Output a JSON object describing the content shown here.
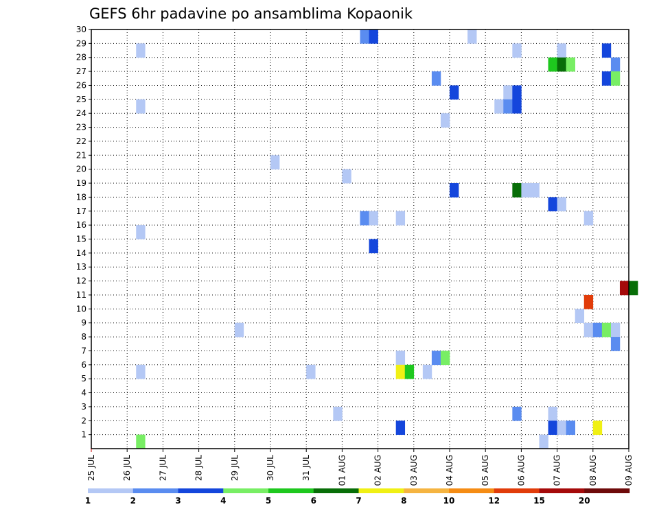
{
  "chart_data": {
    "type": "heatmap",
    "title": "GEFS 6hr padavine po ansamblima Kopaonik",
    "x_tick_labels": [
      "25 JUL",
      "26 JUL",
      "27 JUL",
      "28 JUL",
      "29 JUL",
      "30 JUL",
      "31 JUL",
      "01 AUG",
      "02 AUG",
      "03 AUG",
      "04 AUG",
      "05 AUG",
      "06 AUG",
      "07 AUG",
      "08 AUG",
      "09 AUG"
    ],
    "y_tick_labels": [
      1,
      2,
      3,
      4,
      5,
      6,
      7,
      8,
      9,
      10,
      11,
      12,
      13,
      14,
      15,
      16,
      17,
      18,
      19,
      20,
      21,
      22,
      23,
      24,
      25,
      26,
      27,
      28,
      29,
      30
    ],
    "xlim_days": [
      0,
      15
    ],
    "ylim": [
      0,
      30
    ],
    "grid": true,
    "legend_position": "bottom",
    "colorbar": {
      "labels": [
        "1",
        "2",
        "3",
        "4",
        "5",
        "6",
        "7",
        "8",
        "10",
        "12",
        "15",
        "20"
      ],
      "colors": [
        "#b4c8f5",
        "#5a8cf0",
        "#1446dc",
        "#78ee64",
        "#1ec81e",
        "#086e08",
        "#f0f014",
        "#f5b441",
        "#f58c14",
        "#e13c0a",
        "#a50a0a",
        "#6e0a0a"
      ]
    },
    "cells": [
      {
        "step": 5,
        "member": 28,
        "level": 1
      },
      {
        "step": 5,
        "member": 24,
        "level": 1
      },
      {
        "step": 5,
        "member": 15,
        "level": 1
      },
      {
        "step": 5,
        "member": 5,
        "level": 1
      },
      {
        "step": 5,
        "member": 0,
        "level": 4
      },
      {
        "step": 16,
        "member": 8,
        "level": 1
      },
      {
        "step": 20,
        "member": 20,
        "level": 1
      },
      {
        "step": 24,
        "member": 5,
        "level": 1
      },
      {
        "step": 27,
        "member": 2,
        "level": 1
      },
      {
        "step": 28,
        "member": 19,
        "level": 1
      },
      {
        "step": 30,
        "member": 29,
        "level": 2
      },
      {
        "step": 30,
        "member": 16,
        "level": 2
      },
      {
        "step": 31,
        "member": 29,
        "level": 3
      },
      {
        "step": 31,
        "member": 16,
        "level": 1
      },
      {
        "step": 31,
        "member": 14,
        "level": 3
      },
      {
        "step": 34,
        "member": 16,
        "level": 1
      },
      {
        "step": 34,
        "member": 6,
        "level": 1
      },
      {
        "step": 34,
        "member": 5,
        "level": 7
      },
      {
        "step": 34,
        "member": 1,
        "level": 3
      },
      {
        "step": 35,
        "member": 5,
        "level": 5
      },
      {
        "step": 37,
        "member": 5,
        "level": 1
      },
      {
        "step": 38,
        "member": 26,
        "level": 2
      },
      {
        "step": 38,
        "member": 6,
        "level": 2
      },
      {
        "step": 39,
        "member": 23,
        "level": 1
      },
      {
        "step": 39,
        "member": 6,
        "level": 4
      },
      {
        "step": 40,
        "member": 25,
        "level": 3
      },
      {
        "step": 40,
        "member": 18,
        "level": 3
      },
      {
        "step": 42,
        "member": 29,
        "level": 1
      },
      {
        "step": 45,
        "member": 24,
        "level": 1
      },
      {
        "step": 46,
        "member": 25,
        "level": 1
      },
      {
        "step": 46,
        "member": 24,
        "level": 2
      },
      {
        "step": 47,
        "member": 28,
        "level": 1
      },
      {
        "step": 47,
        "member": 25,
        "level": 3
      },
      {
        "step": 47,
        "member": 24,
        "level": 3
      },
      {
        "step": 47,
        "member": 18,
        "level": 6
      },
      {
        "step": 47,
        "member": 2,
        "level": 2
      },
      {
        "step": 48,
        "member": 18,
        "level": 1
      },
      {
        "step": 49,
        "member": 18,
        "level": 1
      },
      {
        "step": 50,
        "member": 0,
        "level": 1
      },
      {
        "step": 51,
        "member": 27,
        "level": 5
      },
      {
        "step": 51,
        "member": 17,
        "level": 3
      },
      {
        "step": 51,
        "member": 2,
        "level": 1
      },
      {
        "step": 51,
        "member": 1,
        "level": 3
      },
      {
        "step": 52,
        "member": 28,
        "level": 1
      },
      {
        "step": 52,
        "member": 27,
        "level": 6
      },
      {
        "step": 52,
        "member": 17,
        "level": 1
      },
      {
        "step": 52,
        "member": 1,
        "level": 1
      },
      {
        "step": 53,
        "member": 27,
        "level": 4
      },
      {
        "step": 53,
        "member": 1,
        "level": 2
      },
      {
        "step": 54,
        "member": 9,
        "level": 1
      },
      {
        "step": 55,
        "member": 16,
        "level": 1
      },
      {
        "step": 55,
        "member": 10,
        "level": 10
      },
      {
        "step": 55,
        "member": 8,
        "level": 1
      },
      {
        "step": 56,
        "member": 8,
        "level": 2
      },
      {
        "step": 56,
        "member": 1,
        "level": 7
      },
      {
        "step": 57,
        "member": 28,
        "level": 3
      },
      {
        "step": 57,
        "member": 26,
        "level": 3
      },
      {
        "step": 57,
        "member": 8,
        "level": 4
      },
      {
        "step": 58,
        "member": 27,
        "level": 2
      },
      {
        "step": 58,
        "member": 26,
        "level": 4
      },
      {
        "step": 58,
        "member": 8,
        "level": 1
      },
      {
        "step": 58,
        "member": 7,
        "level": 2
      },
      {
        "step": 59,
        "member": 11,
        "level": 11
      },
      {
        "step": 60,
        "member": 11,
        "level": 6
      }
    ]
  }
}
